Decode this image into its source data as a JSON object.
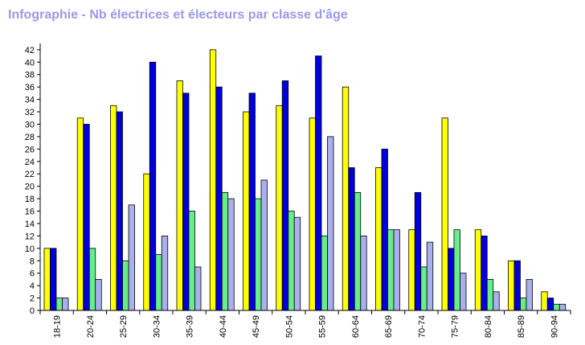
{
  "chart_data": {
    "type": "bar",
    "title": "Infographie - Nb électrices et électeurs par classe d'âge",
    "xlabel": "",
    "ylabel": "",
    "ylim": [
      0,
      42
    ],
    "ytick_step": 2,
    "grid": false,
    "legend": "none",
    "categories": [
      "18-19",
      "20-24",
      "25-29",
      "30-34",
      "35-39",
      "40-44",
      "45-49",
      "50-54",
      "55-59",
      "60-64",
      "65-69",
      "70-74",
      "75-79",
      "80-84",
      "85-89",
      "90-94"
    ],
    "series": [
      {
        "color": "#ffff00",
        "values": [
          10,
          31,
          33,
          22,
          37,
          42,
          32,
          33,
          31,
          36,
          23,
          13,
          31,
          13,
          8,
          3
        ]
      },
      {
        "color": "#0000dd",
        "values": [
          10,
          30,
          32,
          40,
          35,
          36,
          35,
          37,
          41,
          23,
          26,
          19,
          10,
          12,
          8,
          2
        ]
      },
      {
        "color": "#66ee88",
        "values": [
          2,
          10,
          8,
          9,
          16,
          19,
          18,
          16,
          12,
          19,
          13,
          7,
          13,
          5,
          2,
          1
        ]
      },
      {
        "color": "#aab0ee",
        "values": [
          2,
          5,
          17,
          12,
          7,
          18,
          21,
          15,
          28,
          12,
          13,
          11,
          6,
          3,
          5,
          1
        ]
      }
    ]
  }
}
